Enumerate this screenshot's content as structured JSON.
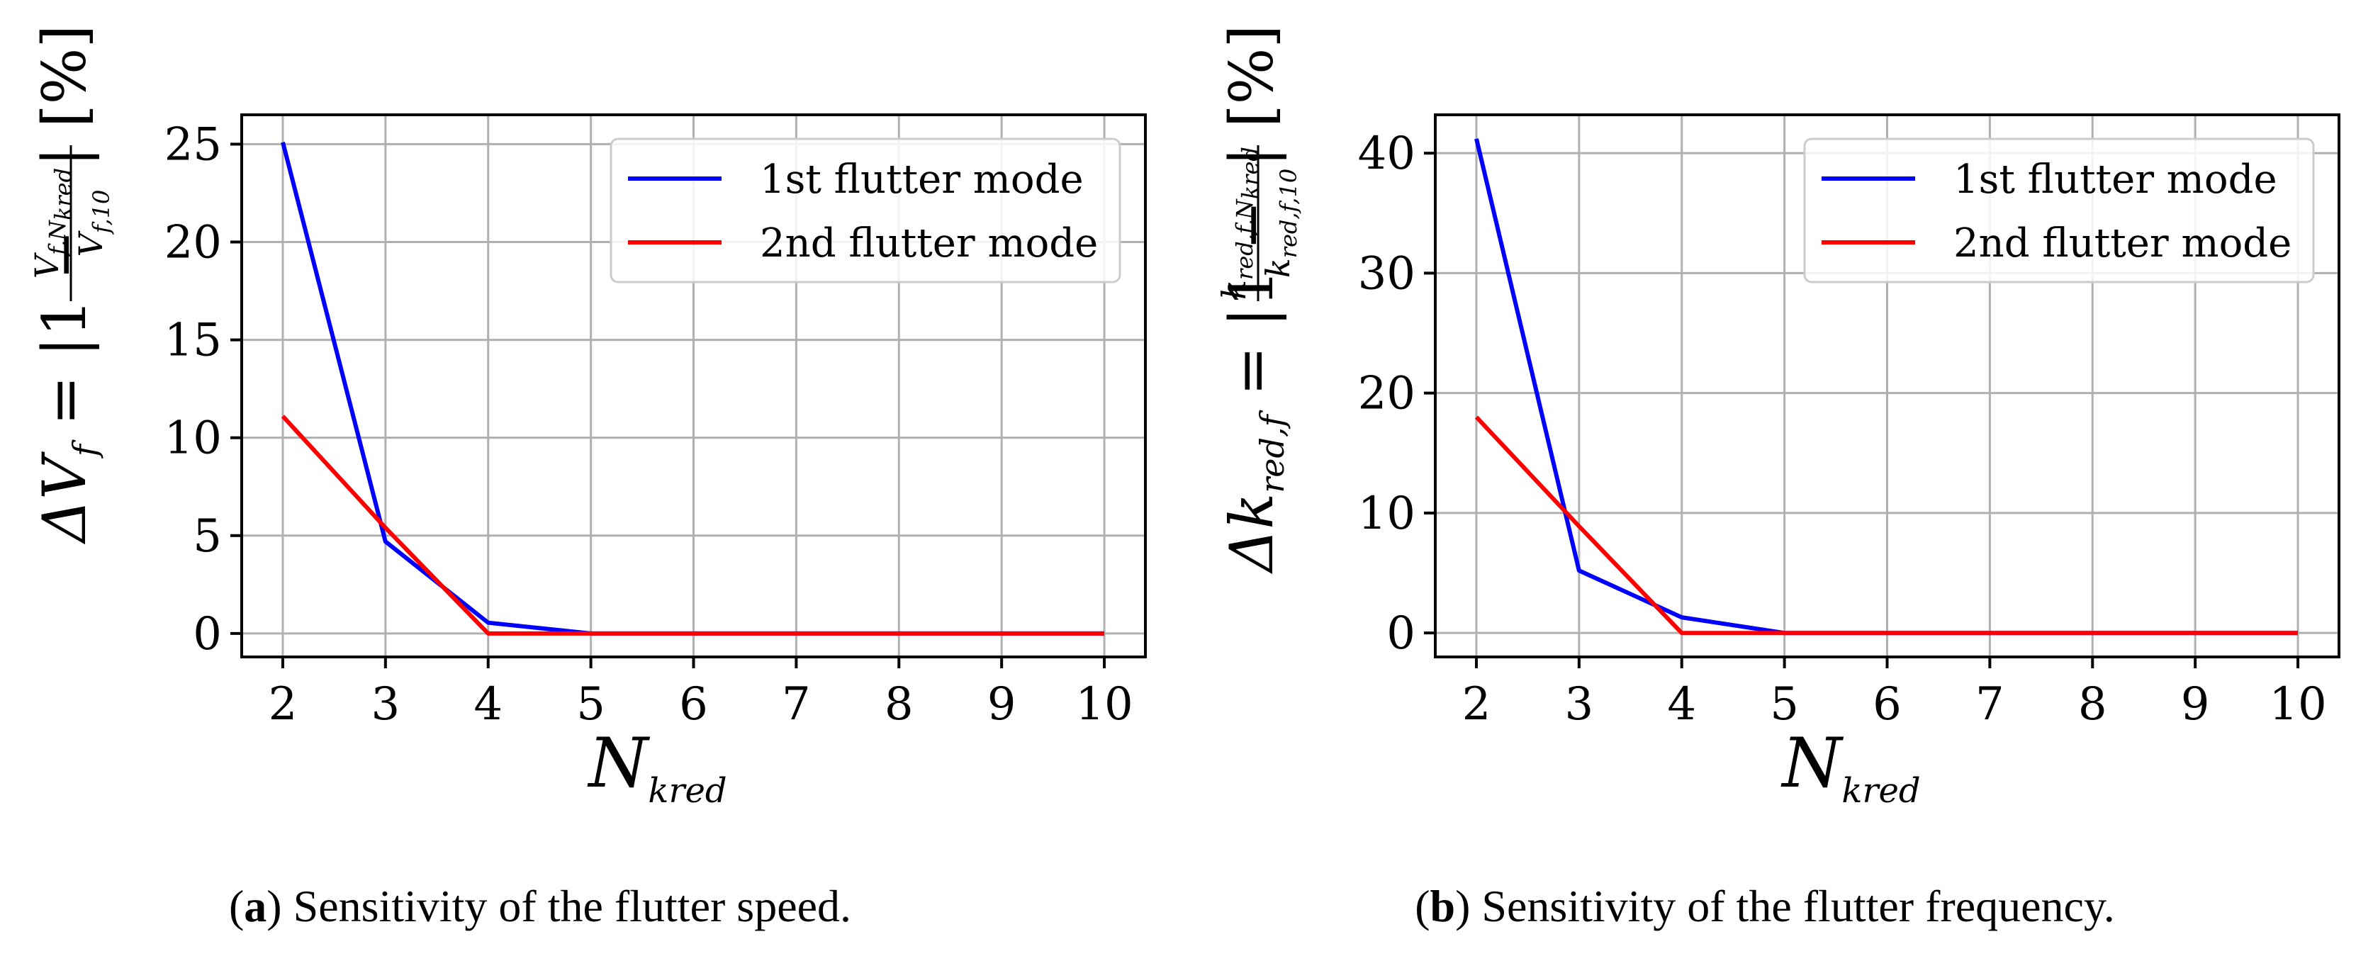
{
  "chart_data": [
    {
      "type": "line",
      "panel_tag": "a",
      "caption": "Sensitivity of the flutter speed.",
      "x": [
        2,
        3,
        4,
        5,
        6,
        7,
        8,
        9,
        10
      ],
      "xlabel_main": "N",
      "xlabel_sub": "kred",
      "ylabel": {
        "prefix": "ΔV",
        "prefix_sub": "f",
        "eq": "= |1 −",
        "numerator": "V",
        "numerator_sub": "f,N",
        "numerator_subsub": "kred",
        "denominator": "V",
        "denominator_sub": "f,10",
        "suffix": "| [%]"
      },
      "xlim": [
        1.6,
        10.4
      ],
      "ylim": [
        -1.2,
        26.5
      ],
      "xticks": [
        "2",
        "3",
        "4",
        "5",
        "6",
        "7",
        "8",
        "9",
        "10"
      ],
      "yticks": [
        0,
        5,
        10,
        15,
        20,
        25
      ],
      "ytick_labels": [
        "0",
        "5",
        "10",
        "15",
        "20",
        "25"
      ],
      "grid": true,
      "legend_position": "top-right",
      "series": [
        {
          "name": "1st flutter mode",
          "color": "#0000ff",
          "values": [
            25.1,
            4.7,
            0.55,
            0.0,
            0.0,
            0.0,
            0.0,
            0.0,
            0.0
          ]
        },
        {
          "name": "2nd flutter mode",
          "color": "#ff0000",
          "values": [
            11.1,
            5.4,
            0.0,
            0.0,
            0.0,
            0.0,
            0.0,
            0.0,
            0.0
          ]
        }
      ]
    },
    {
      "type": "line",
      "panel_tag": "b",
      "caption": "Sensitivity of the flutter frequency.",
      "x": [
        2,
        3,
        4,
        5,
        6,
        7,
        8,
        9,
        10
      ],
      "xlabel_main": "N",
      "xlabel_sub": "kred",
      "ylabel": {
        "prefix": "Δk",
        "prefix_sub": "red,f",
        "eq": "= |1 −",
        "numerator": "k",
        "numerator_sub": "red,f,N",
        "numerator_subsub": "kred",
        "denominator": "k",
        "denominator_sub": "red,f,10",
        "suffix": "| [%]"
      },
      "xlim": [
        1.6,
        10.4
      ],
      "ylim": [
        -2.0,
        43.2
      ],
      "xticks": [
        "2",
        "3",
        "4",
        "5",
        "6",
        "7",
        "8",
        "9",
        "10"
      ],
      "yticks": [
        0,
        10,
        20,
        30,
        40
      ],
      "ytick_labels": [
        "0",
        "10",
        "20",
        "30",
        "40"
      ],
      "grid": true,
      "legend_position": "top-right",
      "series": [
        {
          "name": "1st flutter mode",
          "color": "#0000ff",
          "values": [
            41.2,
            5.2,
            1.3,
            0.0,
            0.0,
            0.0,
            0.0,
            0.0,
            0.0
          ]
        },
        {
          "name": "2nd flutter mode",
          "color": "#ff0000",
          "values": [
            18.0,
            8.9,
            0.0,
            0.0,
            0.0,
            0.0,
            0.0,
            0.0,
            0.0
          ]
        }
      ]
    }
  ]
}
